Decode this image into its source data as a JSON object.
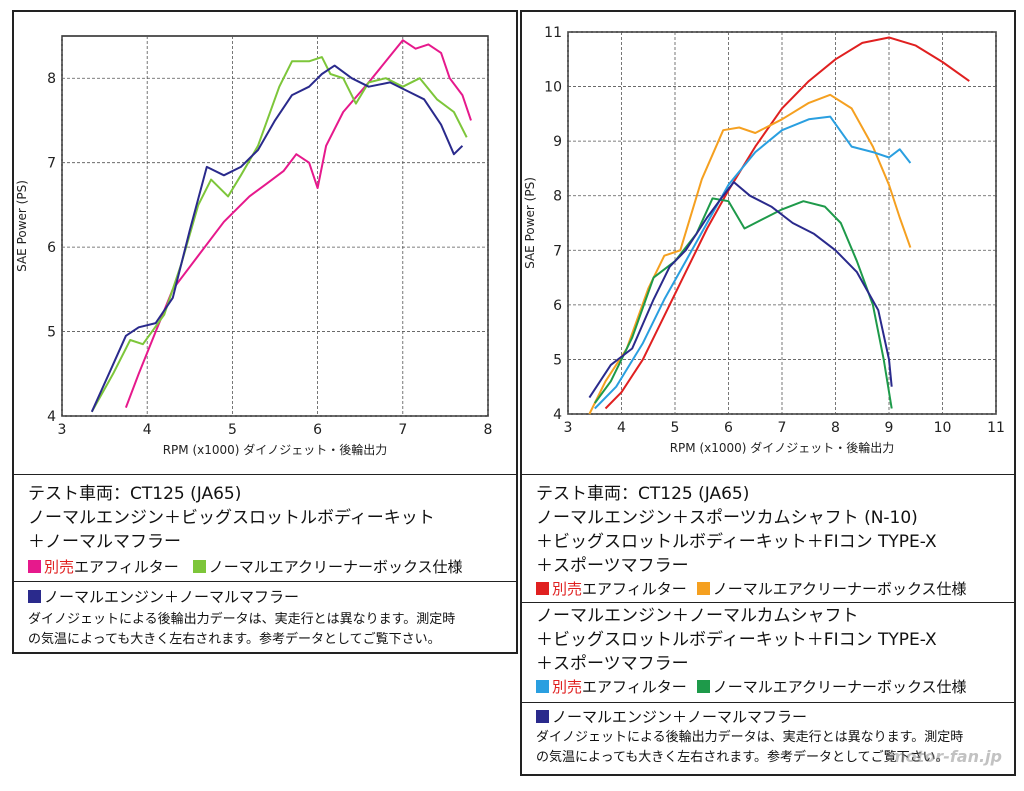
{
  "left": {
    "vehicle": "テスト車両：CT125 (JA65)",
    "desc_lines": [
      "ノーマルエンジン＋ビッグスロットルボディーキット",
      "＋ノーマルマフラー"
    ],
    "legend_a_red": "別売",
    "legend_a_rest": "エアフィルター",
    "legend_b": "ノーマルエアクリーナーボックス仕様",
    "legend_base": "ノーマルエンジン＋ノーマルマフラー",
    "note_lines": [
      "ダイノジェットによる後輪出力データは、実走行とは異なります。測定時",
      "の気温によっても大きく左右されます。参考データとしてご覧下さい。"
    ]
  },
  "right": {
    "vehicle": "テスト車両：CT125 (JA65)",
    "desc1_lines": [
      "ノーマルエンジン＋スポーツカムシャフト (N-10)",
      "＋ビッグスロットルボディーキット＋FIコン TYPE-X",
      "＋スポーツマフラー"
    ],
    "legend1_a_red": "別売",
    "legend1_a_rest": "エアフィルター",
    "legend1_b": "ノーマルエアクリーナーボックス仕様",
    "desc2_lines": [
      "ノーマルエンジン＋ノーマルカムシャフト",
      "＋ビッグスロットルボディーキット＋FIコン TYPE-X",
      "＋スポーツマフラー"
    ],
    "legend2_a_red": "別売",
    "legend2_a_rest": "エアフィルター",
    "legend2_b": "ノーマルエアクリーナーボックス仕様",
    "legend_base": "ノーマルエンジン＋ノーマルマフラー",
    "note_lines": [
      "ダイノジェットによる後輪出力データは、実走行とは異なります。測定時",
      "の気温によっても大きく左右されます。参考データとしてご覧下さい。"
    ]
  },
  "watermark": "motor-fan.jp",
  "chart_data": [
    {
      "type": "line",
      "xlabel": "RPM (x1000) ダイノジェット・後輪出力",
      "ylabel": "SAE Power (PS)",
      "xlim": [
        3,
        8
      ],
      "ylim": [
        4,
        8.5
      ],
      "xticks": [
        "3",
        "4",
        "5",
        "6",
        "7",
        "8"
      ],
      "yticks": [
        "4",
        "5",
        "6",
        "7",
        "8"
      ],
      "grid": true,
      "series": [
        {
          "color": "#e6198c",
          "points": [
            [
              3.75,
              4.1
            ],
            [
              3.9,
              4.5
            ],
            [
              4.1,
              5.0
            ],
            [
              4.3,
              5.5
            ],
            [
              4.6,
              5.9
            ],
            [
              4.9,
              6.3
            ],
            [
              5.2,
              6.6
            ],
            [
              5.4,
              6.75
            ],
            [
              5.6,
              6.9
            ],
            [
              5.75,
              7.1
            ],
            [
              5.9,
              7.0
            ],
            [
              6.0,
              6.7
            ],
            [
              6.1,
              7.2
            ],
            [
              6.3,
              7.6
            ],
            [
              6.6,
              7.95
            ],
            [
              6.8,
              8.2
            ],
            [
              7.0,
              8.45
            ],
            [
              7.15,
              8.35
            ],
            [
              7.3,
              8.4
            ],
            [
              7.45,
              8.3
            ],
            [
              7.55,
              8.0
            ],
            [
              7.7,
              7.8
            ],
            [
              7.8,
              7.5
            ]
          ]
        },
        {
          "color": "#7dc63a",
          "points": [
            [
              3.35,
              4.05
            ],
            [
              3.6,
              4.5
            ],
            [
              3.8,
              4.9
            ],
            [
              3.95,
              4.85
            ],
            [
              4.2,
              5.2
            ],
            [
              4.4,
              5.8
            ],
            [
              4.6,
              6.5
            ],
            [
              4.75,
              6.8
            ],
            [
              4.95,
              6.6
            ],
            [
              5.1,
              6.85
            ],
            [
              5.3,
              7.2
            ],
            [
              5.55,
              7.9
            ],
            [
              5.7,
              8.2
            ],
            [
              5.9,
              8.2
            ],
            [
              6.05,
              8.25
            ],
            [
              6.15,
              8.05
            ],
            [
              6.3,
              8.0
            ],
            [
              6.45,
              7.7
            ],
            [
              6.6,
              7.95
            ],
            [
              6.8,
              8.0
            ],
            [
              7.0,
              7.9
            ],
            [
              7.2,
              8.0
            ],
            [
              7.4,
              7.75
            ],
            [
              7.6,
              7.6
            ],
            [
              7.75,
              7.3
            ]
          ]
        },
        {
          "color": "#2a2a8c",
          "points": [
            [
              3.35,
              4.05
            ],
            [
              3.55,
              4.5
            ],
            [
              3.75,
              4.95
            ],
            [
              3.9,
              5.05
            ],
            [
              4.1,
              5.1
            ],
            [
              4.3,
              5.4
            ],
            [
              4.5,
              6.2
            ],
            [
              4.7,
              6.95
            ],
            [
              4.9,
              6.85
            ],
            [
              5.1,
              6.95
            ],
            [
              5.3,
              7.15
            ],
            [
              5.5,
              7.5
            ],
            [
              5.7,
              7.8
            ],
            [
              5.9,
              7.9
            ],
            [
              6.05,
              8.05
            ],
            [
              6.2,
              8.15
            ],
            [
              6.4,
              8.0
            ],
            [
              6.6,
              7.9
            ],
            [
              6.85,
              7.95
            ],
            [
              7.05,
              7.85
            ],
            [
              7.25,
              7.75
            ],
            [
              7.45,
              7.45
            ],
            [
              7.6,
              7.1
            ],
            [
              7.7,
              7.2
            ]
          ]
        }
      ]
    },
    {
      "type": "line",
      "xlabel": "RPM (x1000) ダイノジェット・後輪出力",
      "ylabel": "SAE Power (PS)",
      "xlim": [
        3,
        11
      ],
      "ylim": [
        4,
        11
      ],
      "xticks": [
        "3",
        "4",
        "5",
        "6",
        "7",
        "8",
        "9",
        "10",
        "11"
      ],
      "yticks": [
        "4",
        "5",
        "6",
        "7",
        "8",
        "9",
        "10",
        "11"
      ],
      "grid": true,
      "series": [
        {
          "color": "#e02020",
          "points": [
            [
              3.7,
              4.1
            ],
            [
              4.0,
              4.4
            ],
            [
              4.4,
              5.0
            ],
            [
              4.8,
              5.8
            ],
            [
              5.2,
              6.6
            ],
            [
              5.6,
              7.4
            ],
            [
              6.0,
              8.1
            ],
            [
              6.5,
              8.9
            ],
            [
              7.0,
              9.6
            ],
            [
              7.5,
              10.1
            ],
            [
              8.0,
              10.5
            ],
            [
              8.5,
              10.8
            ],
            [
              9.0,
              10.9
            ],
            [
              9.5,
              10.75
            ],
            [
              10.0,
              10.45
            ],
            [
              10.5,
              10.1
            ]
          ]
        },
        {
          "color": "#f5a020",
          "points": [
            [
              3.4,
              4.0
            ],
            [
              3.7,
              4.6
            ],
            [
              4.1,
              5.2
            ],
            [
              4.5,
              6.3
            ],
            [
              4.8,
              6.9
            ],
            [
              5.1,
              7.0
            ],
            [
              5.5,
              8.3
            ],
            [
              5.9,
              9.2
            ],
            [
              6.2,
              9.25
            ],
            [
              6.5,
              9.15
            ],
            [
              7.0,
              9.4
            ],
            [
              7.5,
              9.7
            ],
            [
              7.9,
              9.85
            ],
            [
              8.3,
              9.6
            ],
            [
              8.7,
              8.9
            ],
            [
              9.0,
              8.2
            ],
            [
              9.2,
              7.6
            ],
            [
              9.4,
              7.05
            ]
          ]
        },
        {
          "color": "#2a9fe0",
          "points": [
            [
              3.5,
              4.1
            ],
            [
              3.9,
              4.5
            ],
            [
              4.4,
              5.3
            ],
            [
              4.8,
              6.1
            ],
            [
              5.2,
              6.8
            ],
            [
              5.6,
              7.5
            ],
            [
              6.0,
              8.2
            ],
            [
              6.5,
              8.8
            ],
            [
              7.0,
              9.2
            ],
            [
              7.5,
              9.4
            ],
            [
              7.9,
              9.45
            ],
            [
              8.3,
              8.9
            ],
            [
              8.7,
              8.8
            ],
            [
              9.0,
              8.7
            ],
            [
              9.2,
              8.85
            ],
            [
              9.4,
              8.6
            ]
          ]
        },
        {
          "color": "#1e9a4a",
          "points": [
            [
              3.5,
              4.2
            ],
            [
              3.8,
              4.6
            ],
            [
              4.2,
              5.4
            ],
            [
              4.6,
              6.5
            ],
            [
              5.0,
              6.8
            ],
            [
              5.4,
              7.3
            ],
            [
              5.7,
              7.95
            ],
            [
              6.0,
              7.9
            ],
            [
              6.3,
              7.4
            ],
            [
              6.7,
              7.6
            ],
            [
              7.0,
              7.75
            ],
            [
              7.4,
              7.9
            ],
            [
              7.8,
              7.8
            ],
            [
              8.1,
              7.5
            ],
            [
              8.4,
              6.8
            ],
            [
              8.7,
              6.0
            ],
            [
              8.9,
              5.0
            ],
            [
              9.05,
              4.1
            ]
          ]
        },
        {
          "color": "#2a2a8c",
          "points": [
            [
              3.4,
              4.3
            ],
            [
              3.8,
              4.9
            ],
            [
              4.2,
              5.2
            ],
            [
              4.6,
              6.1
            ],
            [
              4.9,
              6.7
            ],
            [
              5.2,
              7.0
            ],
            [
              5.6,
              7.6
            ],
            [
              5.9,
              8.0
            ],
            [
              6.1,
              8.25
            ],
            [
              6.4,
              8.0
            ],
            [
              6.8,
              7.8
            ],
            [
              7.2,
              7.5
            ],
            [
              7.6,
              7.3
            ],
            [
              8.0,
              7.0
            ],
            [
              8.4,
              6.6
            ],
            [
              8.8,
              5.9
            ],
            [
              9.0,
              5.0
            ],
            [
              9.05,
              4.5
            ]
          ]
        }
      ]
    }
  ]
}
